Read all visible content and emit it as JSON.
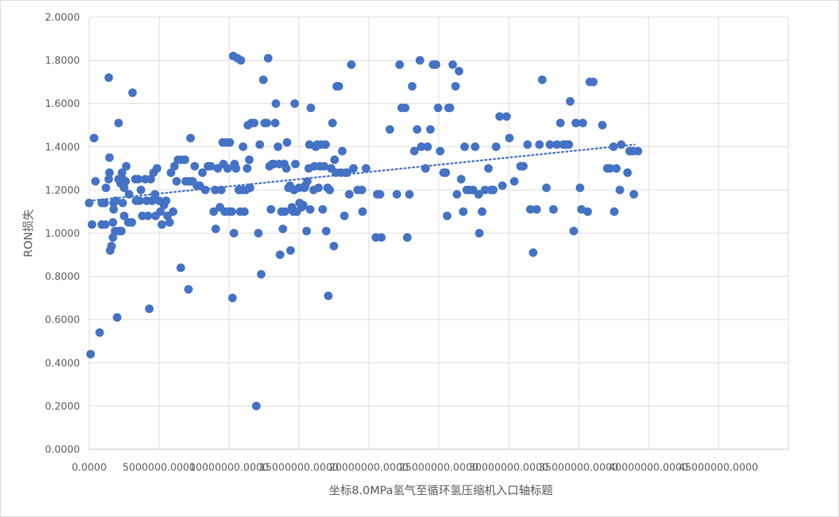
{
  "chart_data": {
    "type": "scatter",
    "title": "",
    "xlabel": "坐标8.0MPa氢气至循环氢压缩机入口轴标题",
    "ylabel": "RON损失",
    "xlim": [
      0,
      50000000
    ],
    "ylim": [
      0,
      2.0
    ],
    "x_ticks": [
      "0.0000",
      "5000000.0000",
      "10000000.0000",
      "15000000.0000",
      "20000000.0000",
      "25000000.0000",
      "30000000.0000",
      "35000000.0000",
      "40000000.0000",
      "45000000.0000"
    ],
    "y_ticks": [
      "0.0000",
      "0.2000",
      "0.4000",
      "0.6000",
      "0.8000",
      "1.0000",
      "1.2000",
      "1.4000",
      "1.6000",
      "1.8000",
      "2.0000"
    ],
    "grid": true,
    "legend": "none",
    "colors": {
      "marker": "#4472c4",
      "trendline": "#4472c4",
      "grid": "#d9d9d9",
      "text": "#595959"
    },
    "trendline": {
      "type": "linear",
      "style": "dotted",
      "x": [
        0,
        39000000
      ],
      "y": [
        1.15,
        1.41
      ]
    },
    "points": [
      [
        0,
        1.14
      ],
      [
        100000,
        0.44
      ],
      [
        200000,
        1.04
      ],
      [
        350000,
        1.44
      ],
      [
        450000,
        1.24
      ],
      [
        750000,
        0.54
      ],
      [
        900000,
        1.14
      ],
      [
        900000,
        1.04
      ],
      [
        1100000,
        1.14
      ],
      [
        1150000,
        1.04
      ],
      [
        1200000,
        1.21
      ],
      [
        1400000,
        1.72
      ],
      [
        1450000,
        1.35
      ],
      [
        1450000,
        1.28
      ],
      [
        1400000,
        1.25
      ],
      [
        1500000,
        0.92
      ],
      [
        1600000,
        0.94
      ],
      [
        1700000,
        0.98
      ],
      [
        1750000,
        1.14
      ],
      [
        1700000,
        1.05
      ],
      [
        1750000,
        1.11
      ],
      [
        1850000,
        1.01
      ],
      [
        1900000,
        1.15
      ],
      [
        2000000,
        0.61
      ],
      [
        2100000,
        1.51
      ],
      [
        2100000,
        1.25
      ],
      [
        2150000,
        1.01
      ],
      [
        2250000,
        1.23
      ],
      [
        2300000,
        1.01
      ],
      [
        2350000,
        1.28
      ],
      [
        2400000,
        1.14
      ],
      [
        2400000,
        1.25
      ],
      [
        2500000,
        1.08
      ],
      [
        2500000,
        1.21
      ],
      [
        2600000,
        1.24
      ],
      [
        2650000,
        1.31
      ],
      [
        2800000,
        1.05
      ],
      [
        2850000,
        1.18
      ],
      [
        3050000,
        1.05
      ],
      [
        3100000,
        1.65
      ],
      [
        3300000,
        1.25
      ],
      [
        3350000,
        1.15
      ],
      [
        3500000,
        1.25
      ],
      [
        3600000,
        1.15
      ],
      [
        3700000,
        1.2
      ],
      [
        3800000,
        1.08
      ],
      [
        4000000,
        1.25
      ],
      [
        4100000,
        1.15
      ],
      [
        4200000,
        1.08
      ],
      [
        4300000,
        0.65
      ],
      [
        4400000,
        1.25
      ],
      [
        4500000,
        1.15
      ],
      [
        4600000,
        1.28
      ],
      [
        4700000,
        1.18
      ],
      [
        4750000,
        1.08
      ],
      [
        4850000,
        1.3
      ],
      [
        5000000,
        1.15
      ],
      [
        5100000,
        1.1
      ],
      [
        5200000,
        1.04
      ],
      [
        5350000,
        1.13
      ],
      [
        5500000,
        1.15
      ],
      [
        5600000,
        1.08
      ],
      [
        5750000,
        1.05
      ],
      [
        5850000,
        1.28
      ],
      [
        6000000,
        1.1
      ],
      [
        6100000,
        1.31
      ],
      [
        6250000,
        1.24
      ],
      [
        6350000,
        1.34
      ],
      [
        6550000,
        0.84
      ],
      [
        6600000,
        1.34
      ],
      [
        6850000,
        1.34
      ],
      [
        6900000,
        1.24
      ],
      [
        7100000,
        0.74
      ],
      [
        7150000,
        1.24
      ],
      [
        7250000,
        1.44
      ],
      [
        7400000,
        1.24
      ],
      [
        7550000,
        1.31
      ],
      [
        7700000,
        1.22
      ],
      [
        7900000,
        1.22
      ],
      [
        8100000,
        1.28
      ],
      [
        8300000,
        1.2
      ],
      [
        8500000,
        1.31
      ],
      [
        8700000,
        1.31
      ],
      [
        8900000,
        1.1
      ],
      [
        9000000,
        1.2
      ],
      [
        9050000,
        1.02
      ],
      [
        9200000,
        1.3
      ],
      [
        9350000,
        1.12
      ],
      [
        9450000,
        1.2
      ],
      [
        9550000,
        1.42
      ],
      [
        9600000,
        1.32
      ],
      [
        9700000,
        1.1
      ],
      [
        9800000,
        1.42
      ],
      [
        9900000,
        1.3
      ],
      [
        10000000,
        1.1
      ],
      [
        10050000,
        1.42
      ],
      [
        10200000,
        1.1
      ],
      [
        10250000,
        0.7
      ],
      [
        10300000,
        1.82
      ],
      [
        10350000,
        1.0
      ],
      [
        10400000,
        1.32
      ],
      [
        10500000,
        1.3
      ],
      [
        10600000,
        1.81
      ],
      [
        10700000,
        1.2
      ],
      [
        10800000,
        1.1
      ],
      [
        10850000,
        1.8
      ],
      [
        10900000,
        1.2
      ],
      [
        11000000,
        1.4
      ],
      [
        11100000,
        1.1
      ],
      [
        11200000,
        1.2
      ],
      [
        11300000,
        1.3
      ],
      [
        11350000,
        1.5
      ],
      [
        11450000,
        1.34
      ],
      [
        11500000,
        1.21
      ],
      [
        11600000,
        1.51
      ],
      [
        11800000,
        1.51
      ],
      [
        11950000,
        0.2
      ],
      [
        12100000,
        1.0
      ],
      [
        12200000,
        1.41
      ],
      [
        12300000,
        0.81
      ],
      [
        12450000,
        1.71
      ],
      [
        12550000,
        1.51
      ],
      [
        12700000,
        1.51
      ],
      [
        12800000,
        1.81
      ],
      [
        12900000,
        1.31
      ],
      [
        13000000,
        1.11
      ],
      [
        13100000,
        1.32
      ],
      [
        13200000,
        1.32
      ],
      [
        13300000,
        1.51
      ],
      [
        13350000,
        1.6
      ],
      [
        13500000,
        1.4
      ],
      [
        13600000,
        1.32
      ],
      [
        13650000,
        0.9
      ],
      [
        13750000,
        1.1
      ],
      [
        13850000,
        1.02
      ],
      [
        13950000,
        1.32
      ],
      [
        14000000,
        1.1
      ],
      [
        14100000,
        1.3
      ],
      [
        14150000,
        1.42
      ],
      [
        14250000,
        1.21
      ],
      [
        14350000,
        1.22
      ],
      [
        14400000,
        0.92
      ],
      [
        14500000,
        1.12
      ],
      [
        14600000,
        1.1
      ],
      [
        14650000,
        1.2
      ],
      [
        14750000,
        1.32
      ],
      [
        14700000,
        1.6
      ],
      [
        14850000,
        1.1
      ],
      [
        15000000,
        1.21
      ],
      [
        15050000,
        1.14
      ],
      [
        15200000,
        1.12
      ],
      [
        15300000,
        1.13
      ],
      [
        15400000,
        1.21
      ],
      [
        15450000,
        1.22
      ],
      [
        15550000,
        1.01
      ],
      [
        15600000,
        1.24
      ],
      [
        15700000,
        1.3
      ],
      [
        15750000,
        1.41
      ],
      [
        15800000,
        1.11
      ],
      [
        15850000,
        1.58
      ],
      [
        16050000,
        1.2
      ],
      [
        16100000,
        1.31
      ],
      [
        16200000,
        1.4
      ],
      [
        16300000,
        1.41
      ],
      [
        16400000,
        1.21
      ],
      [
        16500000,
        1.31
      ],
      [
        16600000,
        1.41
      ],
      [
        16700000,
        1.11
      ],
      [
        16800000,
        1.31
      ],
      [
        16900000,
        1.41
      ],
      [
        16950000,
        1.01
      ],
      [
        17050000,
        1.21
      ],
      [
        17100000,
        0.71
      ],
      [
        17200000,
        1.2
      ],
      [
        17300000,
        1.3
      ],
      [
        17400000,
        1.51
      ],
      [
        17500000,
        0.94
      ],
      [
        17550000,
        1.34
      ],
      [
        17650000,
        1.28
      ],
      [
        17700000,
        1.68
      ],
      [
        17850000,
        1.68
      ],
      [
        18000000,
        1.28
      ],
      [
        18100000,
        1.38
      ],
      [
        18250000,
        1.08
      ],
      [
        18350000,
        1.28
      ],
      [
        18450000,
        1.28
      ],
      [
        18600000,
        1.18
      ],
      [
        18750000,
        1.78
      ],
      [
        18900000,
        1.3
      ],
      [
        19200000,
        1.2
      ],
      [
        19500000,
        1.2
      ],
      [
        19550000,
        1.1
      ],
      [
        19800000,
        1.3
      ],
      [
        20500000,
        0.98
      ],
      [
        20600000,
        1.18
      ],
      [
        20800000,
        1.18
      ],
      [
        20900000,
        0.98
      ],
      [
        21500000,
        1.48
      ],
      [
        22000000,
        1.18
      ],
      [
        22200000,
        1.78
      ],
      [
        22350000,
        1.58
      ],
      [
        22600000,
        1.58
      ],
      [
        22750000,
        0.98
      ],
      [
        22900000,
        1.18
      ],
      [
        23100000,
        1.68
      ],
      [
        23250000,
        1.38
      ],
      [
        23450000,
        1.48
      ],
      [
        23650000,
        1.8
      ],
      [
        23750000,
        1.4
      ],
      [
        24050000,
        1.3
      ],
      [
        24200000,
        1.4
      ],
      [
        24400000,
        1.48
      ],
      [
        24600000,
        1.78
      ],
      [
        24800000,
        1.78
      ],
      [
        24950000,
        1.58
      ],
      [
        25100000,
        1.38
      ],
      [
        25350000,
        1.28
      ],
      [
        25500000,
        1.28
      ],
      [
        25600000,
        1.08
      ],
      [
        25700000,
        1.58
      ],
      [
        25800000,
        1.58
      ],
      [
        26000000,
        1.78
      ],
      [
        26200000,
        1.68
      ],
      [
        26300000,
        1.18
      ],
      [
        26450000,
        1.75
      ],
      [
        26600000,
        1.25
      ],
      [
        26750000,
        1.1
      ],
      [
        26850000,
        1.4
      ],
      [
        27000000,
        1.2
      ],
      [
        27200000,
        1.2
      ],
      [
        27450000,
        1.2
      ],
      [
        27600000,
        1.4
      ],
      [
        27850000,
        1.18
      ],
      [
        27900000,
        1.0
      ],
      [
        28100000,
        1.1
      ],
      [
        28300000,
        1.2
      ],
      [
        28550000,
        1.3
      ],
      [
        28750000,
        1.2
      ],
      [
        28900000,
        1.2
      ],
      [
        29100000,
        1.4
      ],
      [
        29350000,
        1.54
      ],
      [
        29550000,
        1.22
      ],
      [
        29850000,
        1.54
      ],
      [
        30050000,
        1.44
      ],
      [
        30400000,
        1.24
      ],
      [
        30850000,
        1.31
      ],
      [
        31050000,
        1.31
      ],
      [
        31350000,
        1.41
      ],
      [
        31550000,
        1.11
      ],
      [
        31750000,
        0.91
      ],
      [
        32000000,
        1.11
      ],
      [
        32200000,
        1.41
      ],
      [
        32400000,
        1.71
      ],
      [
        32700000,
        1.21
      ],
      [
        32950000,
        1.41
      ],
      [
        33200000,
        1.11
      ],
      [
        33450000,
        1.41
      ],
      [
        33700000,
        1.51
      ],
      [
        33900000,
        1.41
      ],
      [
        34100000,
        1.41
      ],
      [
        34300000,
        1.41
      ],
      [
        34400000,
        1.61
      ],
      [
        34650000,
        1.01
      ],
      [
        34800000,
        1.51
      ],
      [
        35100000,
        1.21
      ],
      [
        35200000,
        1.11
      ],
      [
        35300000,
        1.51
      ],
      [
        35650000,
        1.1
      ],
      [
        35800000,
        1.7
      ],
      [
        36050000,
        1.7
      ],
      [
        36700000,
        1.5
      ],
      [
        37050000,
        1.3
      ],
      [
        37250000,
        1.3
      ],
      [
        37500000,
        1.4
      ],
      [
        37550000,
        1.1
      ],
      [
        37700000,
        1.3
      ],
      [
        37950000,
        1.2
      ],
      [
        38050000,
        1.41
      ],
      [
        38500000,
        1.28
      ],
      [
        38650000,
        1.38
      ],
      [
        38900000,
        1.38
      ],
      [
        38950000,
        1.18
      ],
      [
        39250000,
        1.38
      ]
    ]
  }
}
